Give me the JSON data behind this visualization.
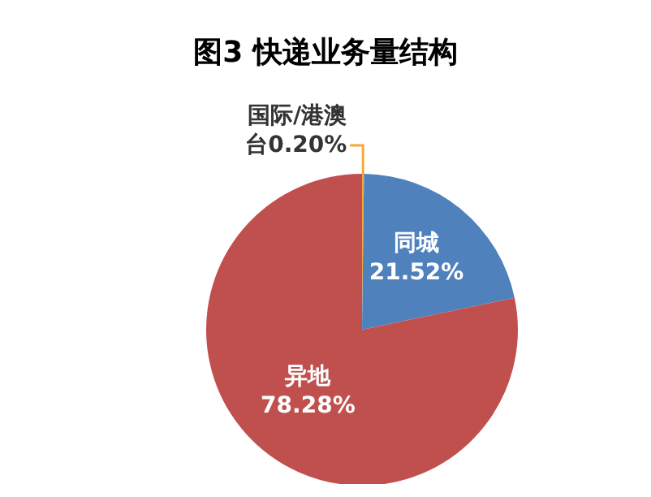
{
  "chart_data": {
    "type": "pie",
    "title": "图3 快递业务量结构",
    "categories": [
      "国际/港澳台",
      "同城",
      "异地"
    ],
    "values": [
      0.2,
      21.52,
      78.28
    ],
    "value_labels": [
      "0.20%",
      "21.52%",
      "78.28%"
    ],
    "colors": [
      "#f2a93b",
      "#4f81bd",
      "#c0504d"
    ]
  }
}
